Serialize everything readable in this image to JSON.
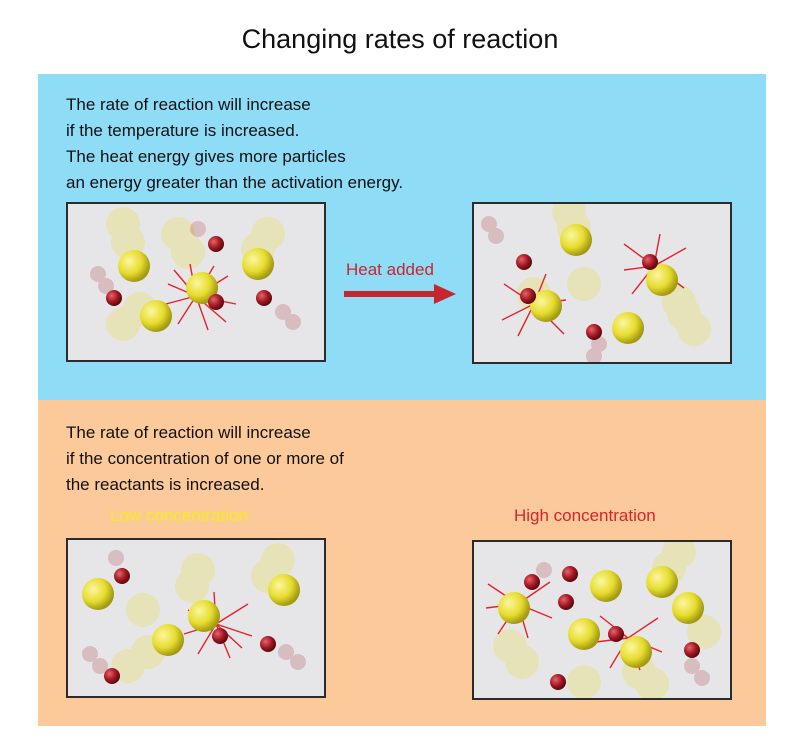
{
  "title": "Changing rates of reaction",
  "temperature_section": {
    "lines": [
      "The rate of reaction will increase",
      "if the temperature is increased.",
      "The heat energy gives more particles",
      "an energy greater than the activation energy."
    ],
    "arrow_label": "Heat added"
  },
  "concentration_section": {
    "lines": [
      "The rate of reaction will increase",
      "if the concentration of one or more of",
      "the reactants is increased."
    ],
    "low_label": "Low concentration",
    "high_label": "High concentration"
  },
  "colors": {
    "top_panel": "#8fdcf7",
    "bottom_panel": "#fcc99b",
    "yellow_particle": "#e6dc2e",
    "red_particle": "#a11822",
    "collision_spark": "#e32229",
    "arrow": "#c8262f"
  }
}
